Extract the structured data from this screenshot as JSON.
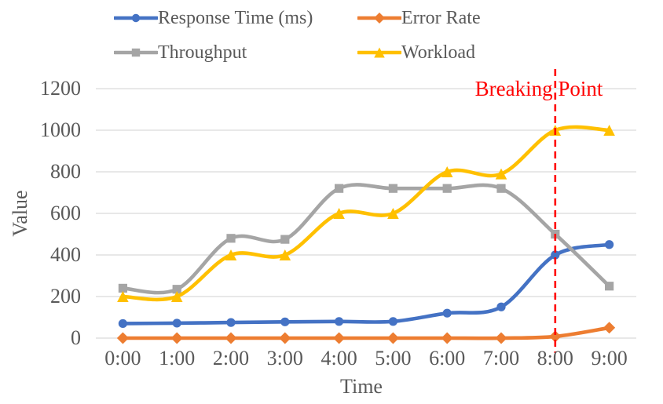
{
  "colors": {
    "background": "#FFFFFF",
    "text": "#595959",
    "grid": "#D9D9D9",
    "annotation": "#FF0000"
  },
  "chart_data": {
    "type": "line",
    "title": "",
    "xlabel": "Time",
    "ylabel": "Value",
    "categories": [
      "0:00",
      "1:00",
      "2:00",
      "3:00",
      "4:00",
      "5:00",
      "6:00",
      "7:00",
      "8:00",
      "9:00"
    ],
    "yticks": [
      "0",
      "200",
      "400",
      "600",
      "800",
      "1000",
      "1200"
    ],
    "ylim": [
      0,
      1200
    ],
    "grid": true,
    "smooth_lines": true,
    "legend_position": "top",
    "series": [
      {
        "name": "Response Time (ms)",
        "color": "#4472C4",
        "marker": "circle",
        "values": [
          70,
          72,
          75,
          78,
          80,
          80,
          120,
          150,
          400,
          450
        ]
      },
      {
        "name": "Error Rate",
        "color": "#ED7D31",
        "marker": "diamond",
        "values": [
          0,
          0,
          0,
          0,
          0,
          0,
          0,
          0,
          8,
          50
        ]
      },
      {
        "name": "Throughput",
        "color": "#A5A5A5",
        "marker": "square",
        "values": [
          240,
          235,
          480,
          475,
          720,
          720,
          720,
          720,
          500,
          250
        ]
      },
      {
        "name": "Workload",
        "color": "#FFC000",
        "marker": "triangle",
        "values": [
          200,
          200,
          400,
          400,
          600,
          600,
          800,
          790,
          1000,
          1000
        ]
      }
    ],
    "annotation": {
      "label": "Breaking Point",
      "x": "8:00",
      "color": "#FF0000",
      "line_style": "dashed"
    }
  }
}
